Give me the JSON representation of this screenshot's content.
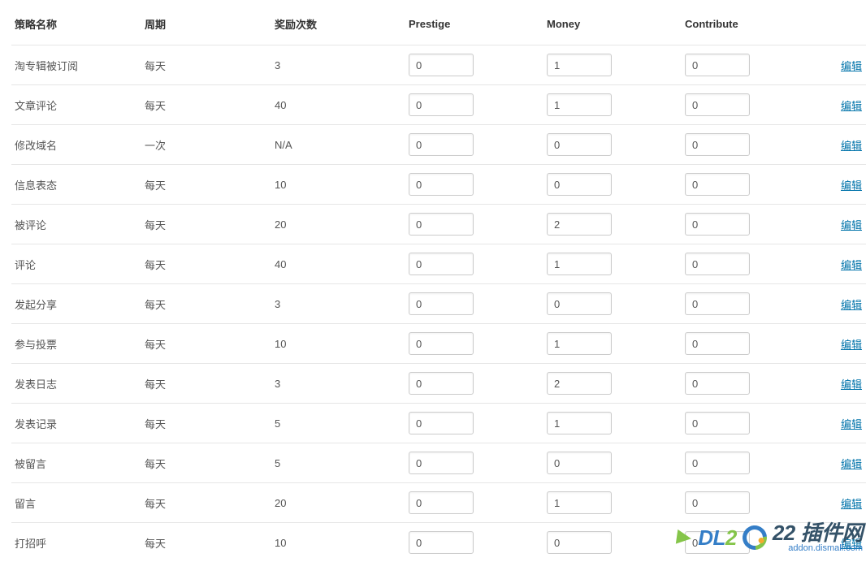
{
  "headers": {
    "name": "策略名称",
    "period": "周期",
    "count": "奖励次数",
    "prestige": "Prestige",
    "money": "Money",
    "contribute": "Contribute"
  },
  "editLabel": "编辑",
  "rows": [
    {
      "name": "淘专辑被订阅",
      "period": "每天",
      "count": "3",
      "prestige": "0",
      "money": "1",
      "contribute": "0"
    },
    {
      "name": "文章评论",
      "period": "每天",
      "count": "40",
      "prestige": "0",
      "money": "1",
      "contribute": "0"
    },
    {
      "name": "修改域名",
      "period": "一次",
      "count": "N/A",
      "prestige": "0",
      "money": "0",
      "contribute": "0"
    },
    {
      "name": "信息表态",
      "period": "每天",
      "count": "10",
      "prestige": "0",
      "money": "0",
      "contribute": "0"
    },
    {
      "name": "被评论",
      "period": "每天",
      "count": "20",
      "prestige": "0",
      "money": "2",
      "contribute": "0"
    },
    {
      "name": "评论",
      "period": "每天",
      "count": "40",
      "prestige": "0",
      "money": "1",
      "contribute": "0"
    },
    {
      "name": "发起分享",
      "period": "每天",
      "count": "3",
      "prestige": "0",
      "money": "0",
      "contribute": "0"
    },
    {
      "name": "参与投票",
      "period": "每天",
      "count": "10",
      "prestige": "0",
      "money": "1",
      "contribute": "0"
    },
    {
      "name": "发表日志",
      "period": "每天",
      "count": "3",
      "prestige": "0",
      "money": "2",
      "contribute": "0"
    },
    {
      "name": "发表记录",
      "period": "每天",
      "count": "5",
      "prestige": "0",
      "money": "1",
      "contribute": "0"
    },
    {
      "name": "被留言",
      "period": "每天",
      "count": "5",
      "prestige": "0",
      "money": "0",
      "contribute": "0"
    },
    {
      "name": "留言",
      "period": "每天",
      "count": "20",
      "prestige": "0",
      "money": "1",
      "contribute": "0"
    },
    {
      "name": "打招呼",
      "period": "每天",
      "count": "10",
      "prestige": "0",
      "money": "0",
      "contribute": "0"
    }
  ],
  "watermark": {
    "main1": "DL",
    "main2": "2",
    "main3": "22 插件网",
    "sub": "addon.dismall.com"
  }
}
